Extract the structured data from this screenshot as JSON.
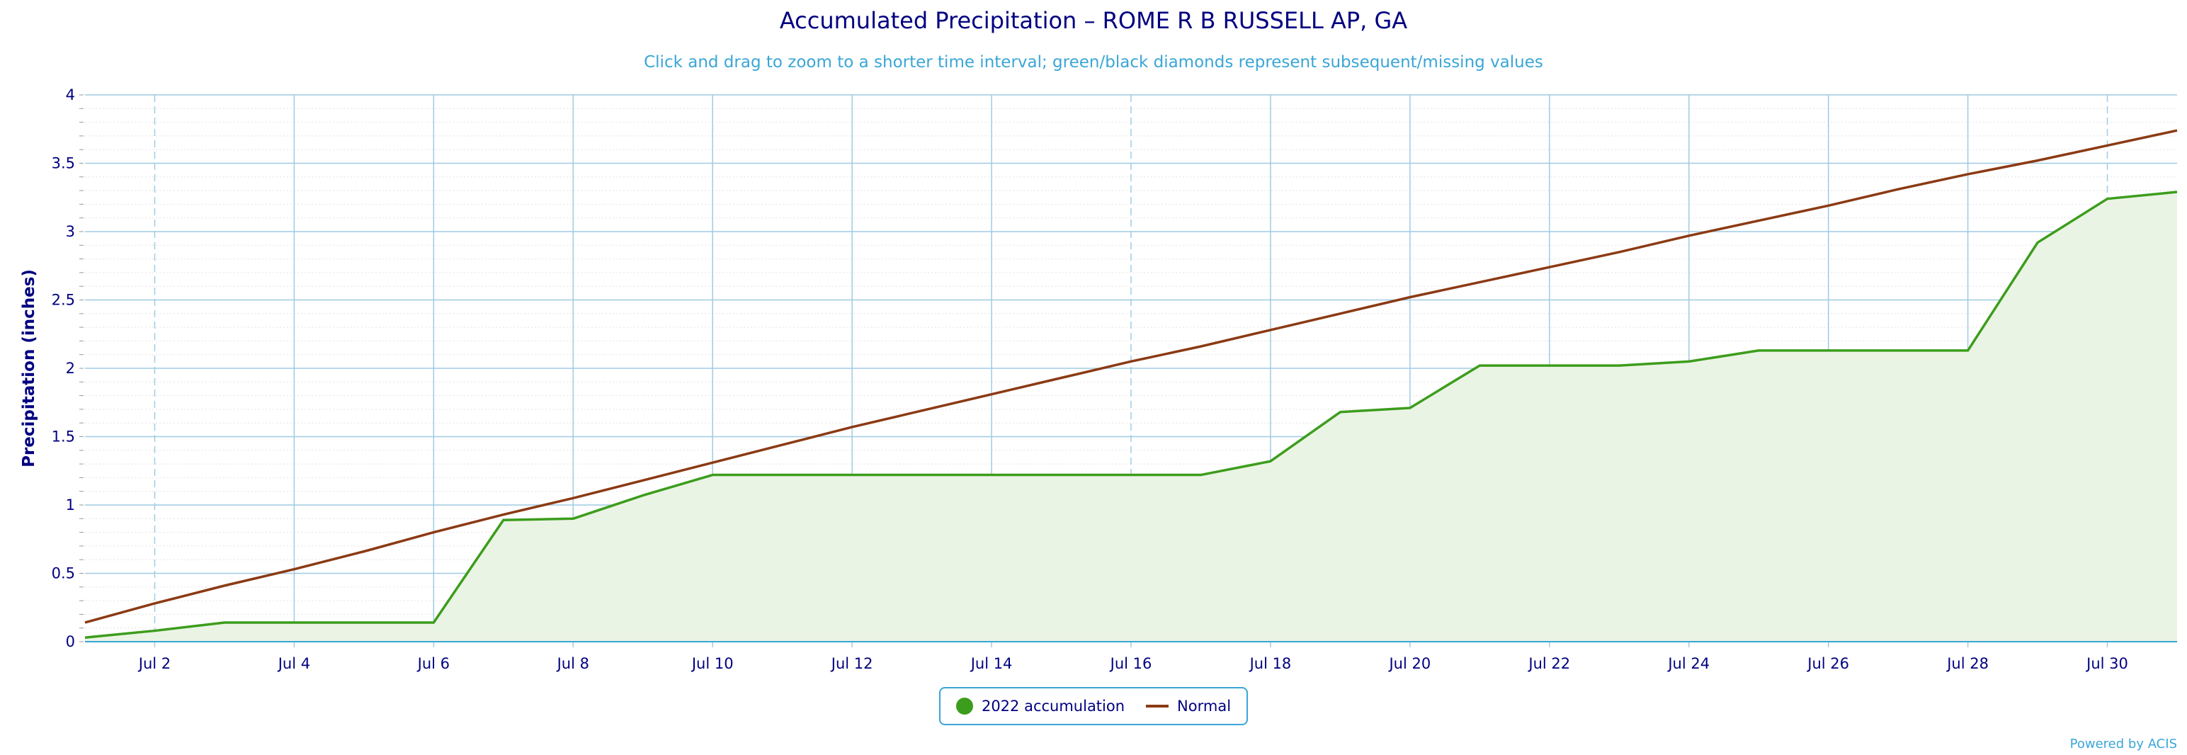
{
  "chart_data": {
    "type": "line",
    "title": "Accumulated Precipitation – ROME R B RUSSELL AP, GA",
    "subtitle": "Click and drag to zoom to a shorter time interval; green/black diamonds represent subsequent/missing values",
    "xlabel": "",
    "ylabel": "Precipitation (inches)",
    "x": [
      1,
      2,
      3,
      4,
      5,
      6,
      7,
      8,
      9,
      10,
      11,
      12,
      13,
      14,
      15,
      16,
      17,
      18,
      19,
      20,
      21,
      22,
      23,
      24,
      25,
      26,
      27,
      28,
      29,
      30,
      31
    ],
    "xlim": [
      1,
      31
    ],
    "xticks": [
      2,
      4,
      6,
      8,
      10,
      12,
      14,
      16,
      18,
      20,
      22,
      24,
      26,
      28,
      30
    ],
    "xtick_labels": [
      "Jul 2",
      "Jul 4",
      "Jul 6",
      "Jul 8",
      "Jul 10",
      "Jul 12",
      "Jul 14",
      "Jul 16",
      "Jul 18",
      "Jul 20",
      "Jul 22",
      "Jul 24",
      "Jul 26",
      "Jul 28",
      "Jul 30"
    ],
    "ylim": [
      0,
      4
    ],
    "yticks": [
      0,
      0.5,
      1,
      1.5,
      2,
      2.5,
      3,
      3.5,
      4
    ],
    "ytick_labels": [
      "0",
      "0.5",
      "1",
      "1.5",
      "2",
      "2.5",
      "3",
      "3.5",
      "4"
    ],
    "grid": true,
    "legend_position": "bottom-center",
    "series": [
      {
        "name": "2022 accumulation",
        "color": "#3c9d1c",
        "fill": "#eaf4e4",
        "values": [
          0.03,
          0.08,
          0.14,
          0.14,
          0.14,
          0.14,
          0.89,
          0.9,
          1.07,
          1.22,
          1.22,
          1.22,
          1.22,
          1.22,
          1.22,
          1.22,
          1.22,
          1.32,
          1.68,
          1.71,
          2.02,
          2.02,
          2.02,
          2.05,
          2.13,
          2.13,
          2.13,
          2.13,
          2.92,
          3.24,
          3.29
        ]
      },
      {
        "name": "Normal",
        "color": "#8b3a14",
        "values": [
          0.14,
          0.28,
          0.41,
          0.53,
          0.66,
          0.8,
          0.93,
          1.05,
          1.18,
          1.31,
          1.44,
          1.57,
          1.69,
          1.81,
          1.93,
          2.05,
          2.16,
          2.28,
          2.4,
          2.52,
          2.63,
          2.74,
          2.85,
          2.97,
          3.08,
          3.19,
          3.31,
          3.42,
          3.52,
          3.63,
          3.74
        ]
      }
    ]
  },
  "credit": "Powered by ACIS"
}
